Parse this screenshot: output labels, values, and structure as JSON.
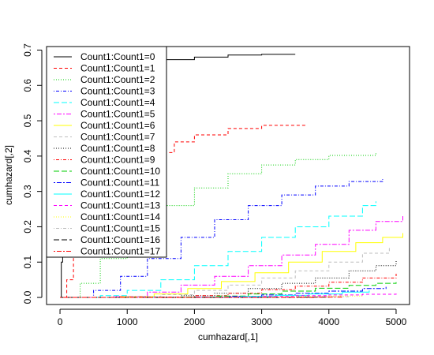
{
  "chart_data": {
    "type": "line",
    "title": "",
    "xlabel": "cumhazard[,1]",
    "ylabel": "cumhazard[,2]",
    "xlim": [
      -200,
      5200
    ],
    "ylim": [
      -0.02,
      0.71
    ],
    "x_ticks": [
      0,
      1000,
      2000,
      3000,
      4000,
      5000
    ],
    "y_ticks": [
      0.0,
      0.1,
      0.2,
      0.3,
      0.4,
      0.5,
      0.6,
      0.7
    ],
    "x_tick_labels": [
      "0",
      "1000",
      "2000",
      "3000",
      "4000",
      "5000"
    ],
    "y_tick_labels": [
      "0.0",
      "0.1",
      "0.2",
      "0.3",
      "0.4",
      "0.5",
      "0.6",
      "0.7"
    ],
    "grid": false,
    "legend_position": "top-left",
    "series": [
      {
        "name": "Count1:Count1=0",
        "color": "#000000",
        "dash": "solid",
        "points": [
          [
            0,
            0.0
          ],
          [
            20,
            0.1
          ],
          [
            40,
            0.3
          ],
          [
            80,
            0.5
          ],
          [
            150,
            0.58
          ],
          [
            300,
            0.62
          ],
          [
            600,
            0.645
          ],
          [
            1000,
            0.66
          ],
          [
            1500,
            0.673
          ],
          [
            2000,
            0.68
          ],
          [
            2500,
            0.686
          ],
          [
            3000,
            0.688
          ],
          [
            3500,
            0.688
          ]
        ]
      },
      {
        "name": "Count1:Count1=1",
        "color": "#FF0000",
        "dash": "dashed",
        "points": [
          [
            0,
            0.0
          ],
          [
            100,
            0.05
          ],
          [
            200,
            0.12
          ],
          [
            400,
            0.22
          ],
          [
            700,
            0.31
          ],
          [
            1000,
            0.37
          ],
          [
            1300,
            0.41
          ],
          [
            1700,
            0.44
          ],
          [
            2000,
            0.46
          ],
          [
            2500,
            0.478
          ],
          [
            3000,
            0.487
          ],
          [
            3650,
            0.49
          ]
        ]
      },
      {
        "name": "Count1:Count1=2",
        "color": "#00CD00",
        "dash": "dotted",
        "points": [
          [
            0,
            0.0
          ],
          [
            300,
            0.04
          ],
          [
            600,
            0.11
          ],
          [
            1000,
            0.19
          ],
          [
            1500,
            0.26
          ],
          [
            2000,
            0.31
          ],
          [
            2500,
            0.35
          ],
          [
            3000,
            0.375
          ],
          [
            3500,
            0.39
          ],
          [
            4000,
            0.402
          ],
          [
            4700,
            0.408
          ]
        ]
      },
      {
        "name": "Count1:Count1=3",
        "color": "#0000FF",
        "dash": "dotdash",
        "points": [
          [
            0,
            0.0
          ],
          [
            500,
            0.02
          ],
          [
            900,
            0.06
          ],
          [
            1300,
            0.11
          ],
          [
            1800,
            0.17
          ],
          [
            2300,
            0.22
          ],
          [
            2800,
            0.26
          ],
          [
            3300,
            0.29
          ],
          [
            3800,
            0.315
          ],
          [
            4300,
            0.328
          ],
          [
            4800,
            0.335
          ]
        ]
      },
      {
        "name": "Count1:Count1=4",
        "color": "#00FFFF",
        "dash": "longdash",
        "points": [
          [
            0,
            0.0
          ],
          [
            600,
            0.005
          ],
          [
            1000,
            0.02
          ],
          [
            1500,
            0.05
          ],
          [
            2000,
            0.09
          ],
          [
            2500,
            0.13
          ],
          [
            3000,
            0.17
          ],
          [
            3500,
            0.2
          ],
          [
            4000,
            0.23
          ],
          [
            4500,
            0.26
          ],
          [
            4700,
            0.272
          ]
        ]
      },
      {
        "name": "Count1:Count1=5",
        "color": "#FF00FF",
        "dash": "twodash",
        "points": [
          [
            0,
            0.0
          ],
          [
            800,
            0.003
          ],
          [
            1300,
            0.015
          ],
          [
            1800,
            0.035
          ],
          [
            2300,
            0.06
          ],
          [
            2800,
            0.09
          ],
          [
            3300,
            0.12
          ],
          [
            3800,
            0.15
          ],
          [
            4300,
            0.19
          ],
          [
            4700,
            0.215
          ],
          [
            5100,
            0.23
          ]
        ]
      },
      {
        "name": "Count1:Count1=6",
        "color": "#FFFF00",
        "dash": "solid",
        "points": [
          [
            0,
            0.0
          ],
          [
            900,
            0.002
          ],
          [
            1400,
            0.01
          ],
          [
            1900,
            0.025
          ],
          [
            2400,
            0.045
          ],
          [
            2900,
            0.07
          ],
          [
            3400,
            0.1
          ],
          [
            3900,
            0.13
          ],
          [
            4400,
            0.155
          ],
          [
            4800,
            0.17
          ],
          [
            5100,
            0.182
          ]
        ]
      },
      {
        "name": "Count1:Count1=7",
        "color": "#BEBEBE",
        "dash": "dashed",
        "points": [
          [
            0,
            0.0
          ],
          [
            1000,
            0.002
          ],
          [
            1500,
            0.008
          ],
          [
            2000,
            0.02
          ],
          [
            2500,
            0.035
          ],
          [
            3000,
            0.055
          ],
          [
            3500,
            0.075
          ],
          [
            4000,
            0.1
          ],
          [
            4500,
            0.125
          ],
          [
            4900,
            0.143
          ]
        ]
      },
      {
        "name": "Count1:Count1=8",
        "color": "#000000",
        "dash": "dotted",
        "points": [
          [
            0,
            0.0
          ],
          [
            1200,
            0.001
          ],
          [
            1800,
            0.005
          ],
          [
            2300,
            0.012
          ],
          [
            2800,
            0.025
          ],
          [
            3300,
            0.04
          ],
          [
            3800,
            0.055
          ],
          [
            4300,
            0.075
          ],
          [
            4700,
            0.09
          ],
          [
            5000,
            0.103
          ]
        ]
      },
      {
        "name": "Count1:Count1=9",
        "color": "#FF0000",
        "dash": "dotdash",
        "points": [
          [
            0,
            0.0
          ],
          [
            1500,
            0.001
          ],
          [
            2000,
            0.005
          ],
          [
            2500,
            0.012
          ],
          [
            3000,
            0.022
          ],
          [
            3500,
            0.032
          ],
          [
            4000,
            0.043
          ],
          [
            4500,
            0.055
          ],
          [
            5000,
            0.067
          ]
        ]
      },
      {
        "name": "Count1:Count1=10",
        "color": "#00CD00",
        "dash": "longdash",
        "points": [
          [
            0,
            0.0
          ],
          [
            1800,
            0.001
          ],
          [
            2300,
            0.004
          ],
          [
            2800,
            0.01
          ],
          [
            3300,
            0.018
          ],
          [
            3800,
            0.026
          ],
          [
            4300,
            0.034
          ],
          [
            4700,
            0.04
          ],
          [
            5000,
            0.043
          ]
        ]
      },
      {
        "name": "Count1:Count1=11",
        "color": "#0000FF",
        "dash": "twodash",
        "points": [
          [
            0,
            0.0
          ],
          [
            2000,
            0.001
          ],
          [
            2500,
            0.003
          ],
          [
            3000,
            0.007
          ],
          [
            3500,
            0.012
          ],
          [
            4000,
            0.018
          ],
          [
            4500,
            0.025
          ],
          [
            4850,
            0.03
          ]
        ]
      },
      {
        "name": "Count1:Count1=12",
        "color": "#00FFFF",
        "dash": "solid",
        "points": [
          [
            0,
            0.0
          ],
          [
            2200,
            0.001
          ],
          [
            2700,
            0.003
          ],
          [
            3200,
            0.006
          ],
          [
            3700,
            0.01
          ],
          [
            4200,
            0.015
          ],
          [
            4600,
            0.02
          ]
        ]
      },
      {
        "name": "Count1:Count1=13",
        "color": "#FF00FF",
        "dash": "dashed",
        "points": [
          [
            0,
            0.0
          ],
          [
            2400,
            0.001
          ],
          [
            3000,
            0.003
          ],
          [
            3500,
            0.005
          ],
          [
            4000,
            0.007
          ],
          [
            4500,
            0.009
          ],
          [
            5000,
            0.011
          ]
        ]
      },
      {
        "name": "Count1:Count1=14",
        "color": "#FFFF00",
        "dash": "dotted",
        "points": [
          [
            0,
            0.0
          ],
          [
            3000,
            0.001
          ],
          [
            3500,
            0.002
          ],
          [
            4000,
            0.004
          ],
          [
            4500,
            0.005
          ]
        ]
      },
      {
        "name": "Count1:Count1=15",
        "color": "#BEBEBE",
        "dash": "dotdash",
        "points": [
          [
            0,
            0.0
          ],
          [
            3200,
            0.001
          ],
          [
            3800,
            0.002
          ],
          [
            4300,
            0.003
          ]
        ]
      },
      {
        "name": "Count1:Count1=16",
        "color": "#000000",
        "dash": "longdash",
        "points": [
          [
            0,
            0.0
          ],
          [
            3500,
            0.001
          ],
          [
            4000,
            0.002
          ]
        ]
      },
      {
        "name": "Count1:Count1=17",
        "color": "#FF0000",
        "dash": "twodash",
        "points": [
          [
            0,
            0.0
          ],
          [
            3800,
            0.001
          ],
          [
            4200,
            0.0015
          ]
        ]
      }
    ]
  }
}
